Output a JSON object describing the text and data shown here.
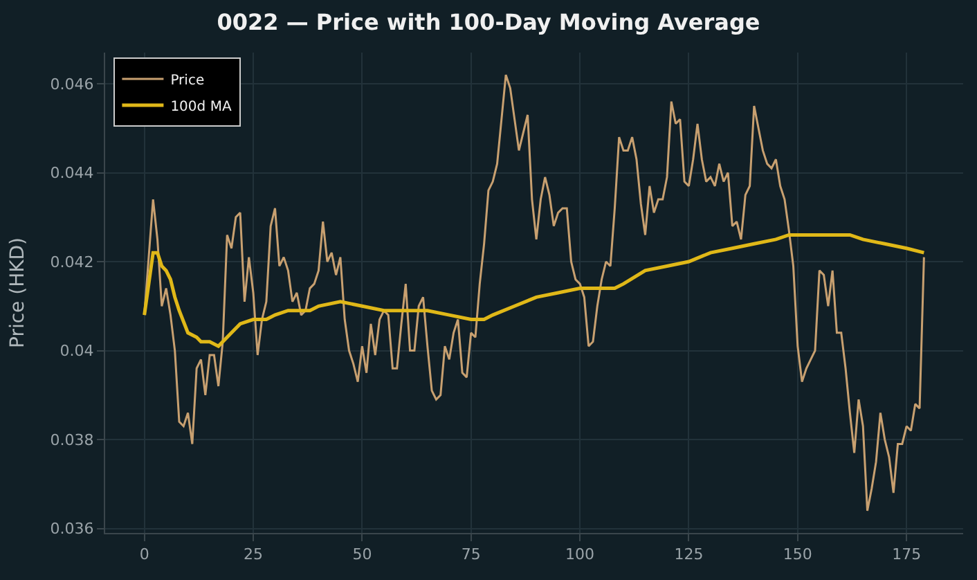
{
  "chart_data": {
    "type": "line",
    "title": "0022 — Price with 100-Day Moving Average",
    "ylabel": "Price (HKD)",
    "xlim": [
      -9,
      188
    ],
    "xticks": [
      0,
      25,
      50,
      75,
      100,
      125,
      150,
      175
    ],
    "ylim": [
      0.0359,
      0.0467
    ],
    "yticks": [
      0.036,
      0.038,
      0.04,
      0.042,
      0.044,
      0.046
    ],
    "grid": true,
    "legend": "top left",
    "line_style": "solid",
    "marker": "none",
    "series": [
      {
        "name": "Price",
        "color": "#c8a070",
        "x": [
          0,
          2,
          3,
          4,
          5,
          6,
          7,
          8,
          9,
          10,
          11,
          12,
          13,
          14,
          15,
          16,
          17,
          18,
          19,
          20,
          21,
          22,
          23,
          24,
          25,
          26,
          27,
          28,
          29,
          30,
          31,
          32,
          33,
          34,
          35,
          36,
          37,
          38,
          39,
          40,
          41,
          42,
          43,
          44,
          45,
          46,
          47,
          48,
          49,
          50,
          51,
          52,
          53,
          54,
          55,
          56,
          57,
          58,
          59,
          60,
          61,
          62,
          63,
          64,
          65,
          66,
          67,
          68,
          69,
          70,
          71,
          72,
          73,
          74,
          75,
          76,
          77,
          78,
          79,
          80,
          81,
          82,
          83,
          84,
          85,
          86,
          87,
          88,
          89,
          90,
          91,
          92,
          93,
          94,
          95,
          96,
          97,
          98,
          99,
          100,
          101,
          102,
          103,
          104,
          105,
          106,
          107,
          108,
          109,
          110,
          111,
          112,
          113,
          114,
          115,
          116,
          117,
          118,
          119,
          120,
          121,
          122,
          123,
          124,
          125,
          126,
          127,
          128,
          129,
          130,
          131,
          132,
          133,
          134,
          135,
          136,
          137,
          138,
          139,
          140,
          141,
          142,
          143,
          144,
          145,
          146,
          147,
          148,
          149,
          150,
          151,
          152,
          153,
          154,
          155,
          156,
          157,
          158,
          159,
          160,
          161,
          162,
          163,
          164,
          165,
          166,
          167,
          168,
          169,
          170,
          171,
          172,
          173,
          174,
          175,
          176,
          177,
          178,
          179
        ],
        "values": [
          0.0408,
          0.0434,
          0.0425,
          0.041,
          0.0414,
          0.0408,
          0.04,
          0.0384,
          0.0383,
          0.0386,
          0.0379,
          0.0396,
          0.0398,
          0.039,
          0.0399,
          0.0399,
          0.0392,
          0.0402,
          0.0426,
          0.0423,
          0.043,
          0.0431,
          0.0411,
          0.0421,
          0.0413,
          0.0399,
          0.0407,
          0.0411,
          0.0428,
          0.0432,
          0.0419,
          0.0421,
          0.0418,
          0.0411,
          0.0413,
          0.0408,
          0.0409,
          0.0414,
          0.0415,
          0.0418,
          0.0429,
          0.042,
          0.0422,
          0.0417,
          0.0421,
          0.0407,
          0.04,
          0.0397,
          0.0393,
          0.0401,
          0.0395,
          0.0406,
          0.0399,
          0.0407,
          0.0409,
          0.0408,
          0.0396,
          0.0396,
          0.0406,
          0.0415,
          0.04,
          0.04,
          0.041,
          0.0412,
          0.0401,
          0.0391,
          0.0389,
          0.039,
          0.0401,
          0.0398,
          0.0404,
          0.0407,
          0.0395,
          0.0394,
          0.0404,
          0.0403,
          0.0415,
          0.0424,
          0.0436,
          0.0438,
          0.0442,
          0.0452,
          0.0462,
          0.0459,
          0.0452,
          0.0445,
          0.0449,
          0.0453,
          0.0434,
          0.0425,
          0.0434,
          0.0439,
          0.0435,
          0.0428,
          0.0431,
          0.0432,
          0.0432,
          0.042,
          0.0416,
          0.0415,
          0.0412,
          0.0401,
          0.0402,
          0.041,
          0.0416,
          0.042,
          0.0419,
          0.0432,
          0.0448,
          0.0445,
          0.0445,
          0.0448,
          0.0443,
          0.0433,
          0.0426,
          0.0437,
          0.0431,
          0.0434,
          0.0434,
          0.0439,
          0.0456,
          0.0451,
          0.0452,
          0.0438,
          0.0437,
          0.0443,
          0.0451,
          0.0443,
          0.0438,
          0.0439,
          0.0437,
          0.0442,
          0.0438,
          0.044,
          0.0428,
          0.0429,
          0.0425,
          0.0435,
          0.0437,
          0.0455,
          0.045,
          0.0445,
          0.0442,
          0.0441,
          0.0443,
          0.0437,
          0.0434,
          0.0427,
          0.0419,
          0.0401,
          0.0393,
          0.0396,
          0.0398,
          0.04,
          0.0418,
          0.0417,
          0.041,
          0.0418,
          0.0404,
          0.0404,
          0.0396,
          0.0386,
          0.0377,
          0.0389,
          0.0383,
          0.0364,
          0.0369,
          0.0375,
          0.0386,
          0.038,
          0.0376,
          0.0368,
          0.0379,
          0.0379,
          0.0383,
          0.0382,
          0.0388,
          0.0387,
          0.0421
        ]
      },
      {
        "name": "100d MA",
        "color": "#e0b818",
        "x": [
          0,
          2,
          3,
          4,
          5,
          6,
          7,
          8,
          10,
          12,
          13,
          15,
          17,
          18,
          20,
          22,
          25,
          28,
          30,
          33,
          38,
          40,
          45,
          50,
          55,
          60,
          65,
          70,
          75,
          78,
          80,
          85,
          90,
          95,
          100,
          105,
          108,
          110,
          115,
          120,
          125,
          130,
          135,
          140,
          145,
          148,
          150,
          155,
          158,
          162,
          165,
          170,
          175,
          179
        ],
        "values": [
          0.0408,
          0.0422,
          0.0422,
          0.0419,
          0.0418,
          0.0416,
          0.0412,
          0.0409,
          0.0404,
          0.0403,
          0.0402,
          0.0402,
          0.0401,
          0.0402,
          0.0404,
          0.0406,
          0.0407,
          0.0407,
          0.0408,
          0.0409,
          0.0409,
          0.041,
          0.0411,
          0.041,
          0.0409,
          0.0409,
          0.0409,
          0.0408,
          0.0407,
          0.0407,
          0.0408,
          0.041,
          0.0412,
          0.0413,
          0.0414,
          0.0414,
          0.0414,
          0.0415,
          0.0418,
          0.0419,
          0.042,
          0.0422,
          0.0423,
          0.0424,
          0.0425,
          0.0426,
          0.0426,
          0.0426,
          0.0426,
          0.0426,
          0.0425,
          0.0424,
          0.0423,
          0.0422
        ]
      }
    ]
  }
}
